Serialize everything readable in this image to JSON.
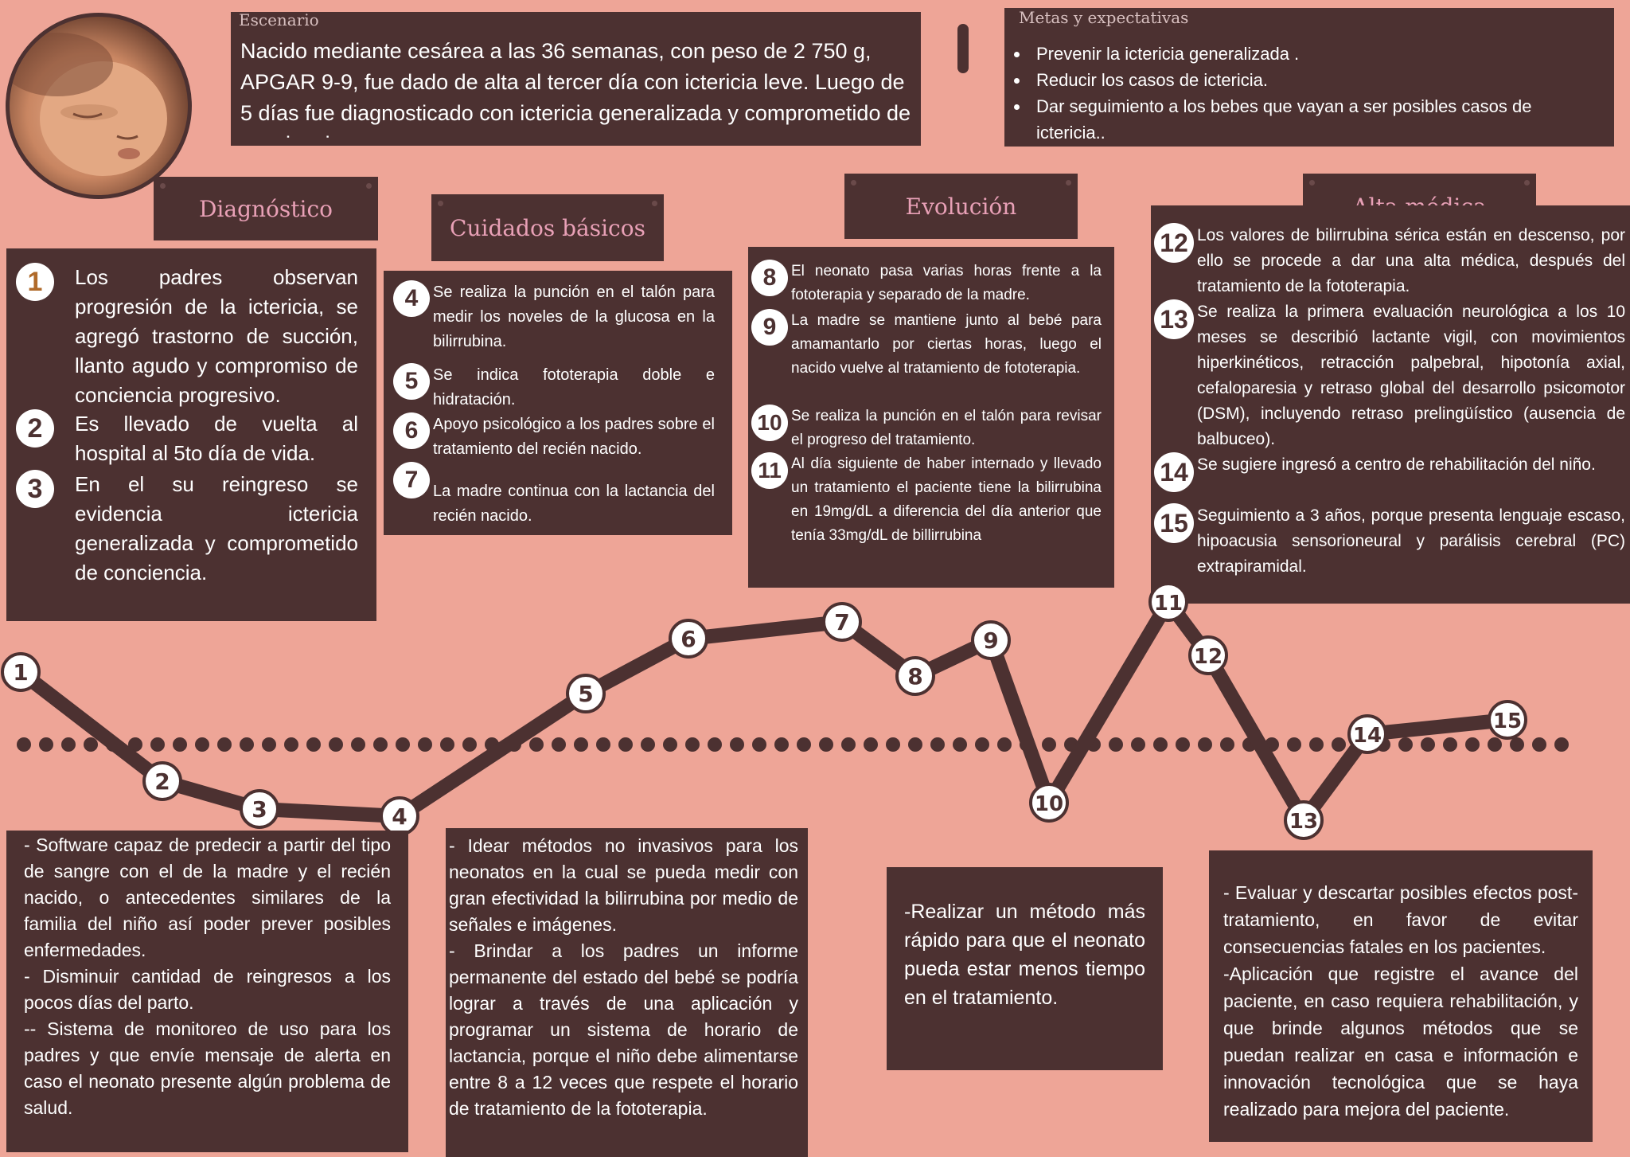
{
  "scenario": {
    "title": "Escenario",
    "text": "Nacido mediante cesárea a las 36 semanas, con peso de 2 750 g, APGAR 9-9, fue dado de alta al tercer día con ictericia leve. Luego de 5 días fue diagnosticado con ictericia generalizada y comprometido de conciencia."
  },
  "goals": {
    "title": "Metas y expectativas",
    "items": [
      "Prevenir la ictericia generalizada .",
      "Reducir los casos de ictericia.",
      "Dar seguimiento a los bebes que vayan a ser posibles casos de ictericia.."
    ]
  },
  "headers": {
    "diagnostico": "Diagnóstico",
    "cuidados": "Cuidados básicos",
    "evolucion": "Evolución",
    "alta": "Alta médica"
  },
  "diagnostico": [
    {
      "n": "1",
      "text": "Los padres observan progresión de la ictericia, se agregó trastorno de succión, llanto agudo y compromiso de conciencia progresivo."
    },
    {
      "n": "2",
      "text": "Es llevado de vuelta al hospital al 5to día de vida."
    },
    {
      "n": "3",
      "text": "En el su reingreso se evidencia ictericia generalizada y comprometido de conciencia."
    }
  ],
  "cuidados": [
    {
      "n": "4",
      "text": "Se realiza la punción en el talón para medir los noveles de la glucosa en la bilirrubina."
    },
    {
      "n": "5",
      "text": "Se indica fototerapia doble e hidratación."
    },
    {
      "n": "6",
      "text": "Apoyo psicológico a los padres sobre el tratamiento del recién nacido."
    },
    {
      "n": "7",
      "text": "La madre continua con la lactancia del recién nacido."
    }
  ],
  "evolucion": [
    {
      "n": "8",
      "text": "El neonato pasa varias horas frente a la fototerapia y separado de la madre."
    },
    {
      "n": "9",
      "text": "La madre se mantiene junto al bebé para amamantarlo por ciertas horas, luego el nacido vuelve al tratamiento de fototerapia."
    },
    {
      "n": "10",
      "text": "Se realiza la punción en el talón para revisar el progreso del tratamiento."
    },
    {
      "n": "11",
      "text": "Al día siguiente de haber internado y llevado un tratamiento el paciente tiene la bilirrubina en 19mg/dL a diferencia del día anterior que tenía 33mg/dL de billirrubina"
    }
  ],
  "alta": [
    {
      "n": "12",
      "text": "Los valores de bilirrubina sérica están en descenso, por ello se procede a dar una alta médica, después del tratamiento de la fototerapia."
    },
    {
      "n": "13",
      "text": "Se realiza la primera evaluación neurológica a los 10 meses se describió lactante vigil, con movimientos hiperkinéticos, retracción palpebral, hipotonía axial, cefaloparesia y retraso global del desarrollo psicomotor (DSM), incluyendo retraso prelingüístico (ausencia de balbuceo)."
    },
    {
      "n": "14",
      "text": "Se sugiere ingresó a centro de rehabilitación del niño."
    },
    {
      "n": "15",
      "text": "Seguimiento a 3 años, porque presenta lenguaje escaso, hipoacusia sensorioneural y parálisis cerebral (PC) extrapiramidal."
    }
  ],
  "timeline": {
    "points": [
      "1",
      "2",
      "3",
      "4",
      "5",
      "6",
      "7",
      "8",
      "9",
      "10",
      "11",
      "12",
      "13",
      "14",
      "15"
    ]
  },
  "bottom": {
    "b1": "- Software capaz de predecir a partir del tipo de sangre con el de la madre y el recién nacido, o antecedentes similares de la familia del niño así poder prever posibles enfermedades.\n- Disminuir cantidad de reingresos a los pocos días del parto.\n-- Sistema de monitoreo de uso para los padres y que envíe mensaje de alerta en caso el neonato presente algún problema de salud.",
    "b2": "- Idear métodos no invasivos para los neonatos en la cual se pueda medir con gran efectividad la bilirrubina por medio de señales e imágenes.\n- Brindar a los padres un informe permanente del estado del bebé se podría lograr a través de una aplicación y programar un sistema de horario de lactancia, porque el niño debe alimentarse entre 8 a 12 veces que respete el horario de tratamiento de la fototerapia.",
    "b3": "-Realizar un método más rápido para que el neonato pueda estar menos tiempo en el tratamiento.",
    "b4": "- Evaluar y descartar posibles efectos post-tratamiento, en favor de evitar consecuencias fatales en los pacientes.\n-Aplicación que registre el avance del paciente, en caso requiera rehabilitación, y que brinde algunos métodos que se puedan realizar en casa e información e innovación tecnológica que se haya realizado para mejora del paciente."
  },
  "colors": {
    "background": "#eea597",
    "panel": "#4c3131",
    "header_text": "#e8a0b6"
  }
}
